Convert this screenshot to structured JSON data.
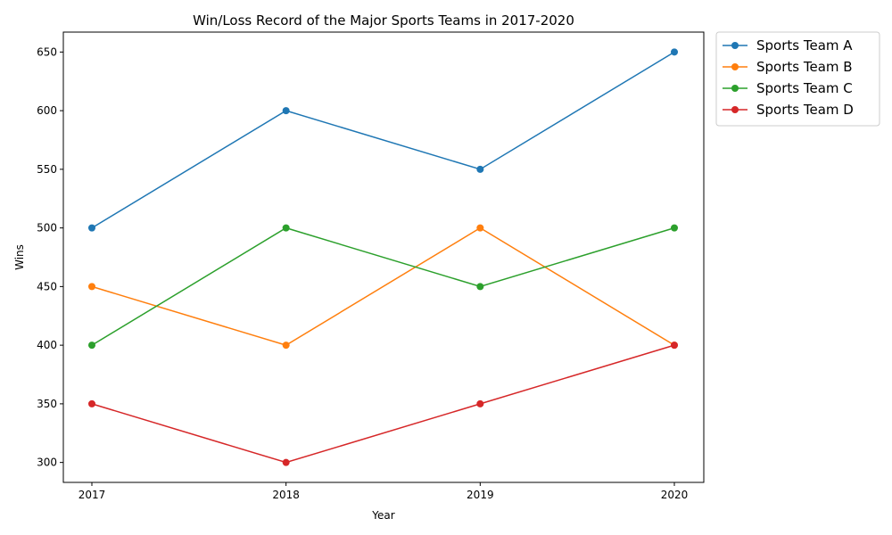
{
  "chart_data": {
    "type": "line",
    "title": "Win/Loss Record of the Major Sports Teams in 2017-2020",
    "xlabel": "Year",
    "ylabel": "Wins",
    "categories": [
      "2017",
      "2018",
      "2019",
      "2020"
    ],
    "ylim": [
      283,
      667
    ],
    "yticks": [
      300,
      350,
      400,
      450,
      500,
      550,
      600,
      650
    ],
    "grid": false,
    "legend_position": "outside-top-right",
    "series": [
      {
        "name": "Sports Team A",
        "color": "#1f77b4",
        "values": [
          500,
          600,
          550,
          650
        ]
      },
      {
        "name": "Sports Team B",
        "color": "#ff7f0e",
        "values": [
          450,
          400,
          500,
          400
        ]
      },
      {
        "name": "Sports Team C",
        "color": "#2ca02c",
        "values": [
          400,
          500,
          450,
          500
        ]
      },
      {
        "name": "Sports Team D",
        "color": "#d62728",
        "values": [
          350,
          300,
          350,
          400
        ]
      }
    ]
  }
}
